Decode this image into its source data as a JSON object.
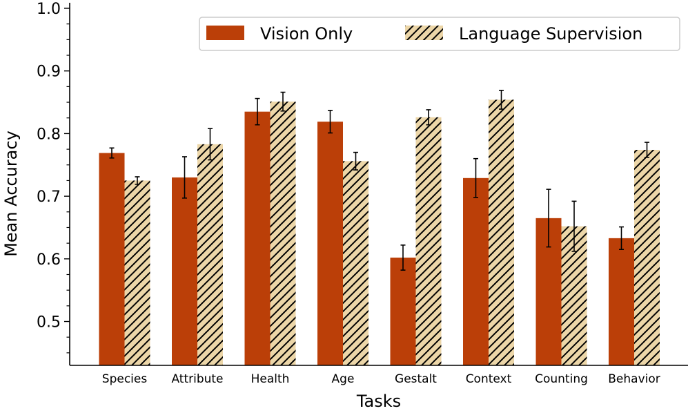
{
  "chart_data": {
    "type": "bar",
    "title": "",
    "xlabel": "Tasks",
    "ylabel": "Mean Accuracy",
    "ylim": [
      0.43,
      1.0
    ],
    "yticks": [
      "0.5",
      "0.6",
      "0.7",
      "0.8",
      "0.9",
      "1.0"
    ],
    "categories": [
      "Species",
      "Attribute",
      "Health",
      "Age",
      "Gestalt",
      "Context",
      "Counting",
      "Behavior"
    ],
    "legend_position": "top-right",
    "series": [
      {
        "name": "Vision Only",
        "color": "#bb3f08",
        "pattern": "solid",
        "values": [
          0.769,
          0.73,
          0.835,
          0.819,
          0.602,
          0.729,
          0.665,
          0.633
        ],
        "errors": [
          0.008,
          0.033,
          0.021,
          0.018,
          0.02,
          0.031,
          0.046,
          0.018
        ]
      },
      {
        "name": "Language Supervision",
        "color": "#ecd6a8",
        "pattern": "hatch",
        "values": [
          0.725,
          0.783,
          0.851,
          0.756,
          0.826,
          0.854,
          0.652,
          0.774
        ],
        "errors": [
          0.006,
          0.025,
          0.015,
          0.014,
          0.012,
          0.015,
          0.04,
          0.012
        ]
      }
    ]
  }
}
